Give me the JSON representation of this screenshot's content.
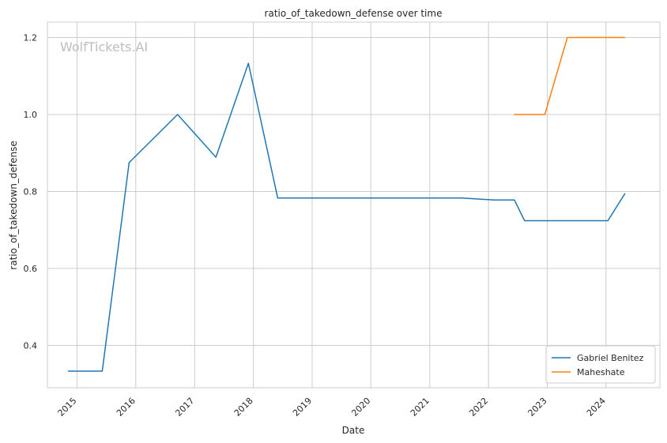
{
  "watermark": "WolfTickets.AI",
  "chart_data": {
    "type": "line",
    "title": "ratio_of_takedown_defense over time",
    "xlabel": "Date",
    "ylabel": "ratio_of_takedown_defense",
    "xlim": [
      "2014-07-01",
      "2024-12-01"
    ],
    "ylim": [
      0.29,
      1.24
    ],
    "x_ticks": [
      "2015",
      "2016",
      "2017",
      "2018",
      "2019",
      "2020",
      "2021",
      "2022",
      "2023",
      "2024"
    ],
    "y_ticks": [
      "0.4",
      "0.6",
      "0.8",
      "1.0",
      "1.2"
    ],
    "grid": true,
    "legend_position": "lower-right",
    "series": [
      {
        "name": "Gabriel Benitez",
        "color": "#1f77b4",
        "points": [
          [
            "2014-11-08",
            0.333
          ],
          [
            "2015-06-07",
            0.333
          ],
          [
            "2015-11-21",
            0.875
          ],
          [
            "2016-09-17",
            1.0
          ],
          [
            "2017-05-13",
            0.889
          ],
          [
            "2017-12-01",
            1.133
          ],
          [
            "2018-06-01",
            0.783
          ],
          [
            "2021-07-17",
            0.783
          ],
          [
            "2022-02-05",
            0.778
          ],
          [
            "2022-06-11",
            0.778
          ],
          [
            "2022-08-13",
            0.724
          ],
          [
            "2024-01-13",
            0.724
          ],
          [
            "2024-04-27",
            0.794
          ]
        ]
      },
      {
        "name": "Maheshate",
        "color": "#ff7f0e",
        "points": [
          [
            "2022-06-11",
            1.0
          ],
          [
            "2022-12-17",
            1.0
          ],
          [
            "2023-05-06",
            1.2
          ],
          [
            "2024-04-27",
            1.2
          ]
        ]
      }
    ]
  }
}
